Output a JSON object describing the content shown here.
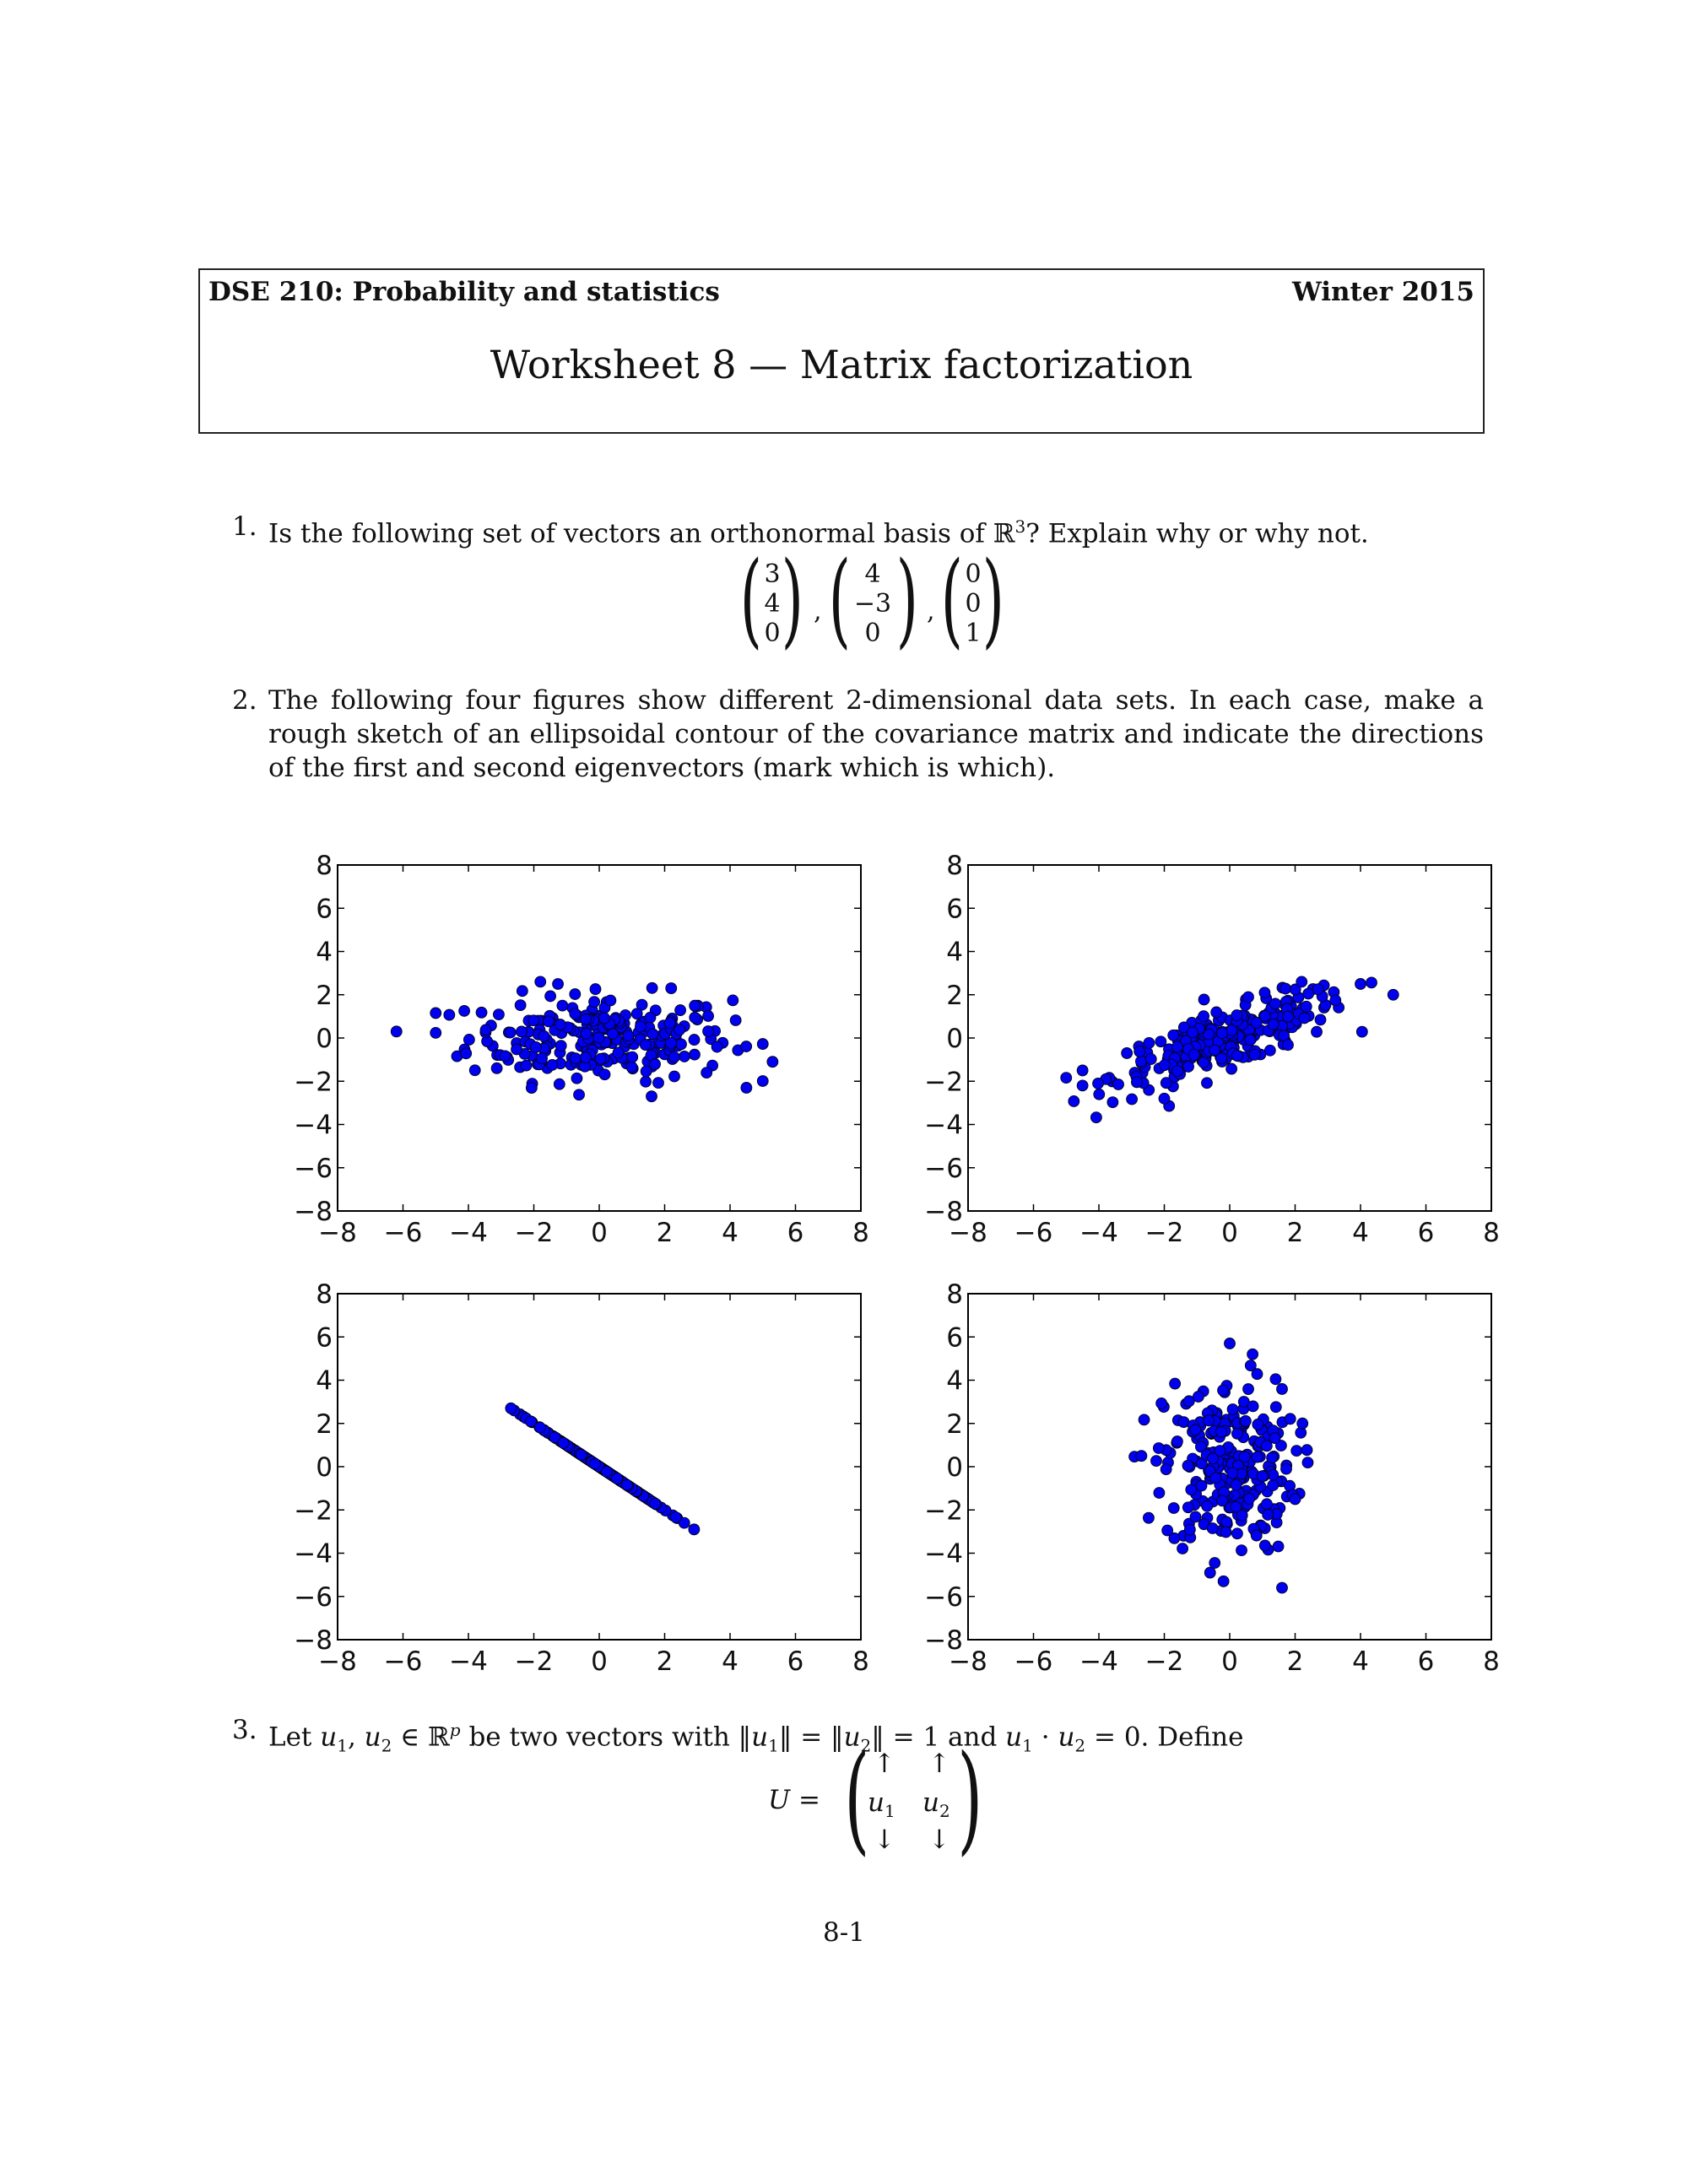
{
  "header": {
    "course": "DSE 210: Probability and statistics",
    "term": "Winter 2015",
    "title": "Worksheet 8 — Matrix factorization"
  },
  "questions": {
    "q1": {
      "number": "1.",
      "text_before": "Is the following set of vectors an orthonormal basis of ℝ",
      "sup": "3",
      "text_after": "? Explain why or why not.",
      "vectors": [
        [
          "3",
          "4",
          "0"
        ],
        [
          "4",
          "−3",
          "0"
        ],
        [
          "0",
          "0",
          "1"
        ]
      ],
      "separator": ","
    },
    "q2": {
      "number": "2.",
      "text": "The following four figures show different 2-dimensional data sets. In each case, make a rough sketch of an ellipsoidal contour of the covariance matrix and indicate the directions of the first and second eigenvectors (mark which is which)."
    },
    "q3": {
      "number": "3.",
      "text_1": "Let ",
      "u1": "u",
      "sub1": "1",
      "comma": ", ",
      "u2": "u",
      "sub2": "2",
      "text_2": " ∈ ℝ",
      "sup_p": "p",
      "text_3": " be two vectors with ‖",
      "text_4": "‖ = ‖",
      "text_5": "‖ = 1 and ",
      "dot": " · ",
      "text_6": " = 0. Define",
      "matrix_label": "U =",
      "arrow_up": "↑",
      "arrow_down": "↓"
    }
  },
  "chart_data": [
    {
      "type": "scatter",
      "name_hint": "wide horizontal cloud",
      "xlim": [
        -8,
        8
      ],
      "ylim": [
        -8,
        8
      ],
      "ticks": [
        "−8",
        "−6",
        "−4",
        "−2",
        "0",
        "2",
        "4",
        "6",
        "8"
      ],
      "marker_color": "#0000ee",
      "distribution": {
        "x_sd": 2.0,
        "y_sd": 1.0,
        "corr": 0.0,
        "n": 250
      },
      "extreme_points": [
        [
          -6.2,
          0.3
        ],
        [
          5.3,
          -1.1
        ],
        [
          4.5,
          -2.3
        ],
        [
          -1.8,
          2.6
        ],
        [
          2.2,
          2.3
        ],
        [
          1.6,
          -2.7
        ]
      ]
    },
    {
      "type": "scatter",
      "name_hint": "positively correlated cloud",
      "xlim": [
        -8,
        8
      ],
      "ylim": [
        -8,
        8
      ],
      "ticks": [
        "−8",
        "−6",
        "−4",
        "−2",
        "0",
        "2",
        "4",
        "6",
        "8"
      ],
      "marker_color": "#0000ee",
      "distribution": {
        "x_sd": 1.8,
        "y_sd": 1.1,
        "corr": 0.8,
        "n": 250
      },
      "extreme_points": [
        [
          -4.5,
          -1.5
        ],
        [
          -4.5,
          -2.2
        ],
        [
          5.0,
          2.0
        ],
        [
          4.0,
          2.5
        ],
        [
          2.2,
          2.6
        ],
        [
          -2.0,
          -2.8
        ]
      ]
    },
    {
      "type": "scatter",
      "name_hint": "perfectly negatively correlated line",
      "xlim": [
        -8,
        8
      ],
      "ylim": [
        -8,
        8
      ],
      "ticks": [
        "−8",
        "−6",
        "−4",
        "−2",
        "0",
        "2",
        "4",
        "6",
        "8"
      ],
      "marker_color": "#0000ee",
      "distribution": {
        "slope": -1.0,
        "x_sd": 1.0,
        "n": 250
      },
      "extreme_points": [
        [
          -2.7,
          2.7
        ],
        [
          2.9,
          -2.9
        ]
      ]
    },
    {
      "type": "scatter",
      "name_hint": "tall vertical cloud",
      "xlim": [
        -8,
        8
      ],
      "ylim": [
        -8,
        8
      ],
      "ticks": [
        "−8",
        "−6",
        "−4",
        "−2",
        "0",
        "2",
        "4",
        "6",
        "8"
      ],
      "marker_color": "#0000ee",
      "distribution": {
        "x_sd": 1.0,
        "y_sd": 2.0,
        "corr": 0.0,
        "n": 250
      },
      "extreme_points": [
        [
          0.0,
          5.7
        ],
        [
          0.7,
          5.2
        ],
        [
          1.6,
          -5.6
        ],
        [
          -0.6,
          -4.9
        ],
        [
          -2.7,
          0.5
        ],
        [
          2.0,
          -1.5
        ]
      ]
    }
  ],
  "footer": {
    "page": "8-1"
  }
}
